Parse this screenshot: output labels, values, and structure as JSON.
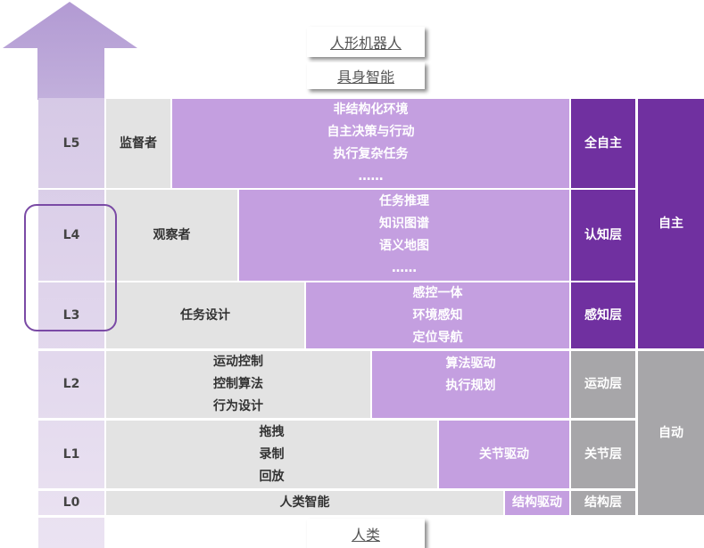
{
  "top_labels": {
    "robot": "人形机器人",
    "embodied": "具身智能",
    "human": "人类"
  },
  "levels": [
    "L5",
    "L4",
    "L3",
    "L2",
    "L1",
    "L0"
  ],
  "rows": {
    "L5": {
      "role": "监督者",
      "tasks": [
        "非结构化环境",
        "自主决策与行动",
        "执行复杂任务",
        "……"
      ],
      "layer": "全自主"
    },
    "L4": {
      "role": "观察者",
      "tasks": [
        "任务推理",
        "知识图谱",
        "语义地图",
        "……"
      ],
      "layer": "认知层"
    },
    "L3": {
      "role": "任务设计",
      "tasks": [
        "感控一体",
        "环境感知",
        "定位导航"
      ],
      "layer": "感知层"
    },
    "L2": {
      "role": [
        "运动控制",
        "控制算法",
        "行为设计"
      ],
      "tasks": [
        "算法驱动",
        "执行规划"
      ],
      "layer": "运动层"
    },
    "L1": {
      "role": [
        "拖拽",
        "录制",
        "回放"
      ],
      "tasks": [
        "关节驱动"
      ],
      "layer": "关节层"
    },
    "L0": {
      "role": "人类智能",
      "tasks": [
        "结构驱动"
      ],
      "layer": "结构层"
    }
  },
  "groups": {
    "autonomous": "自主",
    "automatic": "自动"
  },
  "colors": {
    "purple": "#c49fe0",
    "dark_purple": "#7030a0",
    "grey": "#e3e3e3",
    "dark_grey": "#a7a6a9"
  }
}
